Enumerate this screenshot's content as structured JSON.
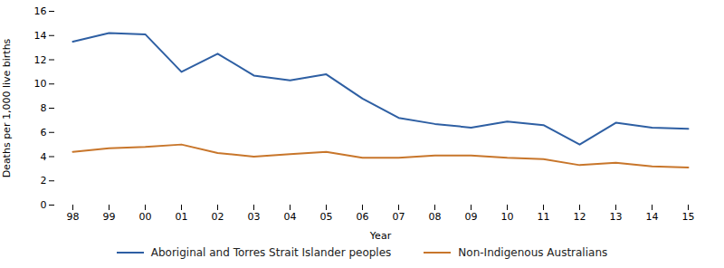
{
  "chart_data": {
    "type": "line",
    "xlabel": "Year",
    "ylabel": "Deaths per 1,000 live births",
    "categories": [
      "98",
      "99",
      "00",
      "01",
      "02",
      "03",
      "04",
      "05",
      "06",
      "07",
      "08",
      "09",
      "10",
      "11",
      "12",
      "13",
      "14",
      "15"
    ],
    "series": [
      {
        "name": "Aboriginal and Torres Strait Islander peoples",
        "color": "#2E5FA3",
        "values": [
          13.5,
          14.2,
          14.1,
          11.0,
          12.5,
          10.7,
          10.3,
          10.8,
          8.8,
          7.2,
          6.7,
          6.4,
          6.9,
          6.6,
          5.0,
          6.8,
          6.4,
          6.3
        ]
      },
      {
        "name": "Non-Indigenous Australians",
        "color": "#C8762B",
        "values": [
          4.4,
          4.7,
          4.8,
          5.0,
          4.3,
          4.0,
          4.2,
          4.4,
          3.9,
          3.9,
          4.1,
          4.1,
          3.9,
          3.8,
          3.3,
          3.5,
          3.2,
          3.1
        ]
      }
    ],
    "ylim": [
      0,
      16
    ],
    "yticks": [
      0,
      2,
      4,
      6,
      8,
      10,
      12,
      14,
      16
    ],
    "grid": false,
    "legend": "bottom"
  }
}
